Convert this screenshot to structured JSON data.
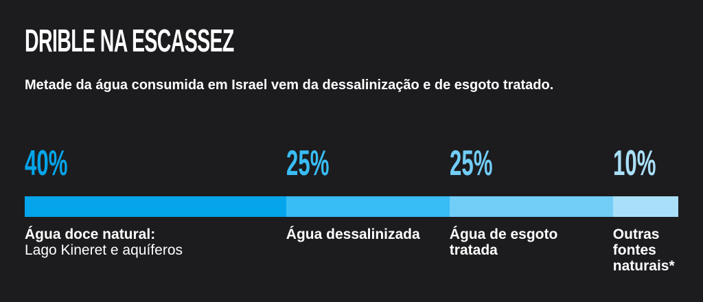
{
  "title": "DRIBLE NA ESCASSEZ",
  "subtitle": "Metade da água consumida em Israel vem da dessalinização e de esgoto tratado.",
  "colors": {
    "background": "#1c1c1f",
    "seg1": "#04a5ea",
    "seg2": "#38bdf5",
    "seg3": "#72cdf7",
    "seg4": "#a9dff8"
  },
  "chart_data": {
    "type": "bar",
    "orientation": "horizontal-stacked",
    "title": "DRIBLE NA ESCASSEZ",
    "subtitle": "Metade da água consumida em Israel vem da dessalinização e de esgoto tratado.",
    "unit": "%",
    "total": 100,
    "segments": [
      {
        "value": 40,
        "value_label": "40%",
        "label_bold": "Água doce natural:",
        "label_regular": "Lago Kineret e aquíferos",
        "color": "#04a5ea"
      },
      {
        "value": 25,
        "value_label": "25%",
        "label_bold": "Água dessalinizada",
        "label_regular": "",
        "color": "#38bdf5"
      },
      {
        "value": 25,
        "value_label": "25%",
        "label_bold": "Água de esgoto tratada",
        "label_regular": "",
        "color": "#72cdf7"
      },
      {
        "value": 10,
        "value_label": "10%",
        "label_bold": "Outras fontes naturais*",
        "label_regular": "",
        "color": "#a9dff8"
      }
    ]
  }
}
